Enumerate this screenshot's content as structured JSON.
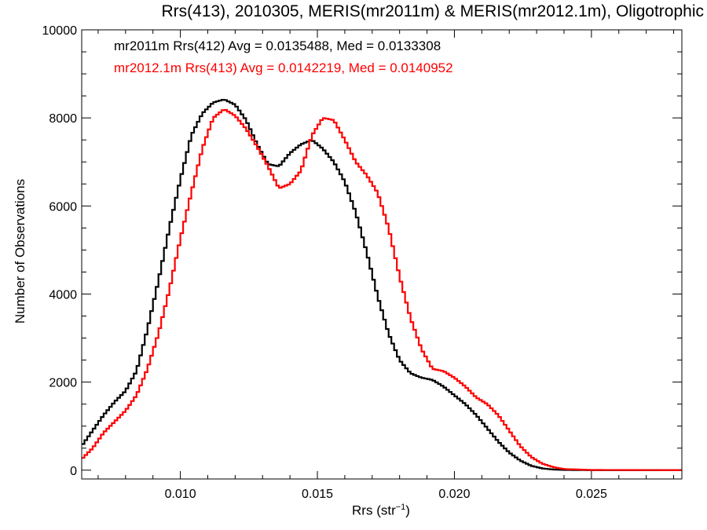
{
  "chart_data": {
    "type": "line",
    "title": "Rrs(413), 2010305, MERIS(mr2011m) & MERIS(mr2012.1m), Oligotrophic",
    "xlabel": "Rrs (str",
    "xlabel_sup": "−1",
    "xlabel_close": ")",
    "ylabel": "Number of Observations",
    "xlim": [
      0.0064,
      0.0283
    ],
    "ylim": [
      -200,
      10000
    ],
    "x_ticks": [
      {
        "value": 0.01,
        "label": "0.010"
      },
      {
        "value": 0.015,
        "label": "0.015"
      },
      {
        "value": 0.02,
        "label": "0.020"
      },
      {
        "value": 0.025,
        "label": "0.025"
      }
    ],
    "y_ticks": [
      {
        "value": 0,
        "label": "0"
      },
      {
        "value": 2000,
        "label": "2000"
      },
      {
        "value": 4000,
        "label": "4000"
      },
      {
        "value": 6000,
        "label": "6000"
      },
      {
        "value": 8000,
        "label": "8000"
      },
      {
        "value": 10000,
        "label": "10000"
      }
    ],
    "legend": [
      {
        "text": "mr2011m Rrs(412) Avg = 0.0135488, Med = 0.0133308",
        "color": "#000000"
      },
      {
        "text": "mr2012.1m Rrs(413) Avg = 0.0142219, Med = 0.0140952",
        "color": "#ff0000"
      }
    ],
    "series": [
      {
        "color": "#000000",
        "points": [
          [
            0.0064,
            550
          ],
          [
            0.0068,
            900
          ],
          [
            0.0072,
            1250
          ],
          [
            0.0076,
            1550
          ],
          [
            0.008,
            1800
          ],
          [
            0.0084,
            2250
          ],
          [
            0.0088,
            3200
          ],
          [
            0.0092,
            4300
          ],
          [
            0.0096,
            5500
          ],
          [
            0.01,
            6600
          ],
          [
            0.0104,
            7600
          ],
          [
            0.0108,
            8100
          ],
          [
            0.0112,
            8350
          ],
          [
            0.0116,
            8420
          ],
          [
            0.012,
            8300
          ],
          [
            0.0124,
            7950
          ],
          [
            0.0128,
            7400
          ],
          [
            0.0132,
            6950
          ],
          [
            0.0136,
            6900
          ],
          [
            0.014,
            7200
          ],
          [
            0.0144,
            7400
          ],
          [
            0.0148,
            7500
          ],
          [
            0.0152,
            7300
          ],
          [
            0.0156,
            7000
          ],
          [
            0.016,
            6550
          ],
          [
            0.0164,
            5850
          ],
          [
            0.0168,
            4950
          ],
          [
            0.0172,
            3950
          ],
          [
            0.0176,
            3100
          ],
          [
            0.018,
            2500
          ],
          [
            0.0184,
            2200
          ],
          [
            0.0188,
            2100
          ],
          [
            0.0192,
            2050
          ],
          [
            0.0196,
            1900
          ],
          [
            0.02,
            1700
          ],
          [
            0.0204,
            1500
          ],
          [
            0.0208,
            1250
          ],
          [
            0.0212,
            950
          ],
          [
            0.0216,
            650
          ],
          [
            0.022,
            400
          ],
          [
            0.0224,
            220
          ],
          [
            0.0228,
            100
          ],
          [
            0.0232,
            40
          ],
          [
            0.0236,
            15
          ],
          [
            0.024,
            5
          ],
          [
            0.025,
            0
          ],
          [
            0.0283,
            0
          ]
        ]
      },
      {
        "color": "#ff0000",
        "points": [
          [
            0.0064,
            250
          ],
          [
            0.0068,
            500
          ],
          [
            0.0072,
            850
          ],
          [
            0.0076,
            1100
          ],
          [
            0.008,
            1350
          ],
          [
            0.0084,
            1700
          ],
          [
            0.0088,
            2300
          ],
          [
            0.0092,
            3100
          ],
          [
            0.0096,
            4100
          ],
          [
            0.01,
            5250
          ],
          [
            0.0104,
            6300
          ],
          [
            0.0108,
            7300
          ],
          [
            0.0112,
            8000
          ],
          [
            0.0116,
            8200
          ],
          [
            0.012,
            8050
          ],
          [
            0.0124,
            7750
          ],
          [
            0.0128,
            7350
          ],
          [
            0.0132,
            6900
          ],
          [
            0.0136,
            6400
          ],
          [
            0.014,
            6500
          ],
          [
            0.0144,
            6800
          ],
          [
            0.0148,
            7600
          ],
          [
            0.0152,
            8000
          ],
          [
            0.0156,
            7950
          ],
          [
            0.016,
            7500
          ],
          [
            0.0164,
            7000
          ],
          [
            0.0168,
            6700
          ],
          [
            0.0172,
            6300
          ],
          [
            0.0176,
            5500
          ],
          [
            0.018,
            4400
          ],
          [
            0.0184,
            3450
          ],
          [
            0.0188,
            2750
          ],
          [
            0.0192,
            2300
          ],
          [
            0.0196,
            2250
          ],
          [
            0.02,
            2100
          ],
          [
            0.0204,
            1900
          ],
          [
            0.0208,
            1650
          ],
          [
            0.0212,
            1500
          ],
          [
            0.0216,
            1250
          ],
          [
            0.022,
            900
          ],
          [
            0.0224,
            550
          ],
          [
            0.0228,
            300
          ],
          [
            0.0232,
            150
          ],
          [
            0.0236,
            70
          ],
          [
            0.024,
            25
          ],
          [
            0.025,
            5
          ],
          [
            0.0283,
            0
          ]
        ]
      }
    ]
  }
}
